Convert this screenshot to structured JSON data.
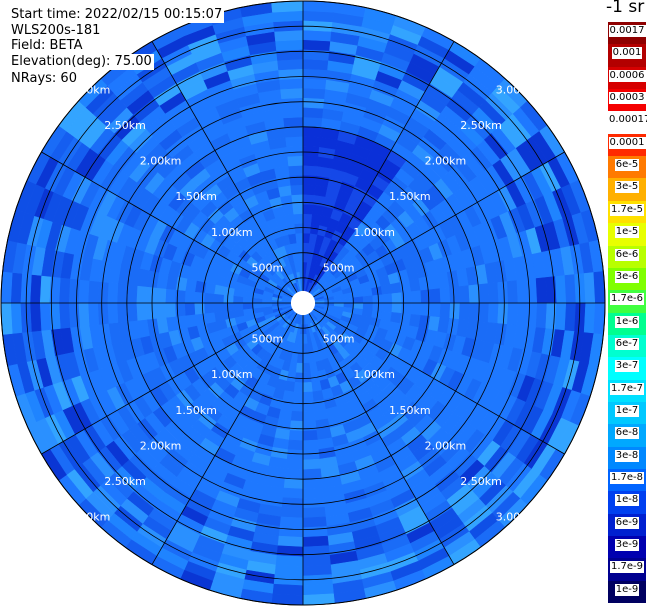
{
  "header": {
    "start_time": "Start time: 2022/02/15 00:15:07",
    "station": "WLS200s-181",
    "field": "Field: BETA",
    "elevation": "Elevation(deg): 75.00",
    "nrays": "NRays: 60"
  },
  "chart_data": {
    "type": "heatmap",
    "projection": "polar",
    "ring_labels": [
      "500m",
      "1.00km",
      "1.50km",
      "2.00km",
      "2.50km",
      "3.00km"
    ],
    "ring_ranges_km": [
      0.5,
      1.0,
      1.5,
      2.0,
      2.5,
      3.0
    ],
    "max_range_km": 3.0,
    "grid": true,
    "n_rays": 60,
    "colorbar": {
      "title": "-1 sr",
      "placement": "right",
      "ticks": [
        "0.0017",
        "0.001",
        "0.0006",
        "0.0003",
        "0.00017",
        "0.0001",
        "6e-5",
        "3e-5",
        "1.7e-5",
        "1e-5",
        "6e-6",
        "3e-6",
        "1.7e-6",
        "1e-6",
        "6e-7",
        "3e-7",
        "1.7e-7",
        "1e-7",
        "6e-8",
        "3e-8",
        "1.7e-8",
        "1e-8",
        "6e-9",
        "3e-9",
        "1.7e-9",
        "1e-9"
      ],
      "colors": [
        "#8e0000",
        "#b30000",
        "#d60000",
        "#f50000",
        "#ffffff",
        "#ff2a00",
        "#ff7a00",
        "#ffb000",
        "#ffe000",
        "#e8ff00",
        "#b8ff00",
        "#80ff00",
        "#40ff40",
        "#00ff90",
        "#00ffd0",
        "#00ffff",
        "#00e0ff",
        "#00c8ff",
        "#00a8ff",
        "#0088ff",
        "#0064ff",
        "#0040f0",
        "#0020d0",
        "#0000b0",
        "#000090",
        "#000060"
      ]
    }
  }
}
